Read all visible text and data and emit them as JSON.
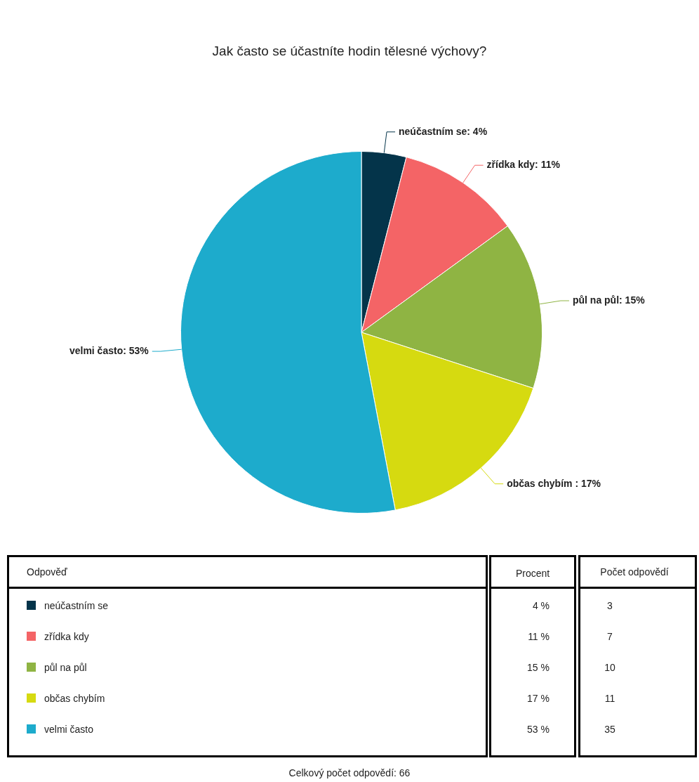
{
  "chart_data": {
    "type": "pie",
    "title": "Jak často se účastníte hodin tělesné výchovy?",
    "categories": [
      "neúčastním se",
      "zřídka kdy",
      "půl na půl",
      "občas chybím",
      "velmi často"
    ],
    "values": [
      4,
      11,
      15,
      17,
      53
    ],
    "value_labels": [
      "neúčastním se: 4%",
      "zřídka kdy: 11%",
      "půl na půl: 15%",
      "občas chybím : 17%",
      "velmi často: 53%"
    ],
    "colors": [
      "#04344a",
      "#f46466",
      "#8fb443",
      "#d6da10",
      "#1dabcc"
    ],
    "legend": "bottom",
    "annotations": [
      "Odpověď",
      "Procent",
      "Počet odpovědí",
      "4 %",
      "11 %",
      "15 %",
      "17 %",
      "53 %",
      "3",
      "7",
      "10",
      "11",
      "35",
      "Celkový počet odpovědí: 66"
    ]
  }
}
